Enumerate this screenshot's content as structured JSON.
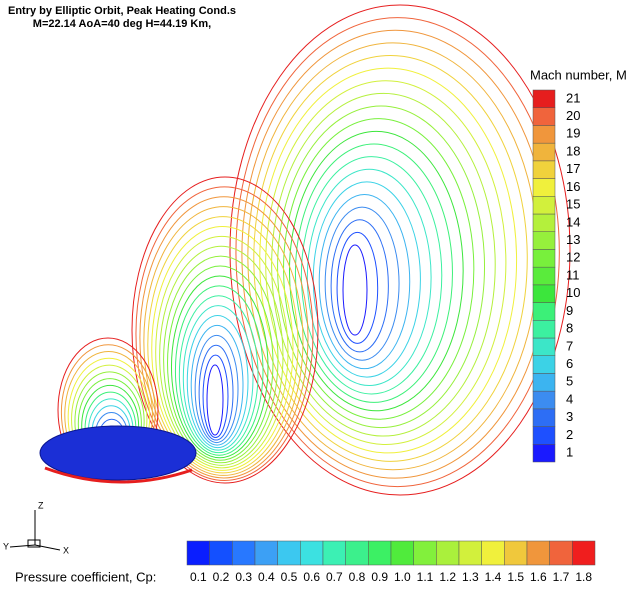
{
  "title": {
    "line1": "Entry by Elliptic Orbit, Peak Heating Cond.s",
    "line2": "M=22.14 AoA=40 deg H=44.19 Km,"
  },
  "mach_legend": {
    "title": "Mach number, M",
    "labels": [
      "1",
      "2",
      "3",
      "4",
      "5",
      "6",
      "7",
      "8",
      "9",
      "10",
      "11",
      "12",
      "13",
      "14",
      "15",
      "16",
      "17",
      "18",
      "19",
      "20",
      "21"
    ],
    "colors": [
      "#1a1aff",
      "#1e50ff",
      "#2d6ef5",
      "#3c8cf0",
      "#3cb4f0",
      "#3cd2e6",
      "#3ce6c8",
      "#3cf0a0",
      "#3cf078",
      "#3ce63c",
      "#5aeb3c",
      "#78f03c",
      "#96f03c",
      "#b4f03c",
      "#d2f03c",
      "#f0f03c",
      "#f0d23c",
      "#f0b43c",
      "#f0963c",
      "#f0643c",
      "#e61e1e"
    ]
  },
  "cp_legend": {
    "title": "Pressure coefficient, Cp:",
    "labels": [
      "0.1",
      "0.2",
      "0.3",
      "0.4",
      "0.5",
      "0.6",
      "0.7",
      "0.8",
      "0.9",
      "1.0",
      "1.1",
      "1.2",
      "1.3",
      "1.4",
      "1.5",
      "1.6",
      "1.7",
      "1.8"
    ],
    "colors": [
      "#0a1eff",
      "#1450ff",
      "#2878ff",
      "#3ca0f5",
      "#3cc8f0",
      "#3ce1e1",
      "#3cf0b4",
      "#3cf08c",
      "#3cf064",
      "#50eb3c",
      "#82f03c",
      "#aaf03c",
      "#d2f03c",
      "#f0f03c",
      "#f0c83c",
      "#f0963c",
      "#f0643c",
      "#f01e1e"
    ]
  },
  "axes": {
    "z": "Z",
    "y": "Y",
    "x": "X"
  }
}
